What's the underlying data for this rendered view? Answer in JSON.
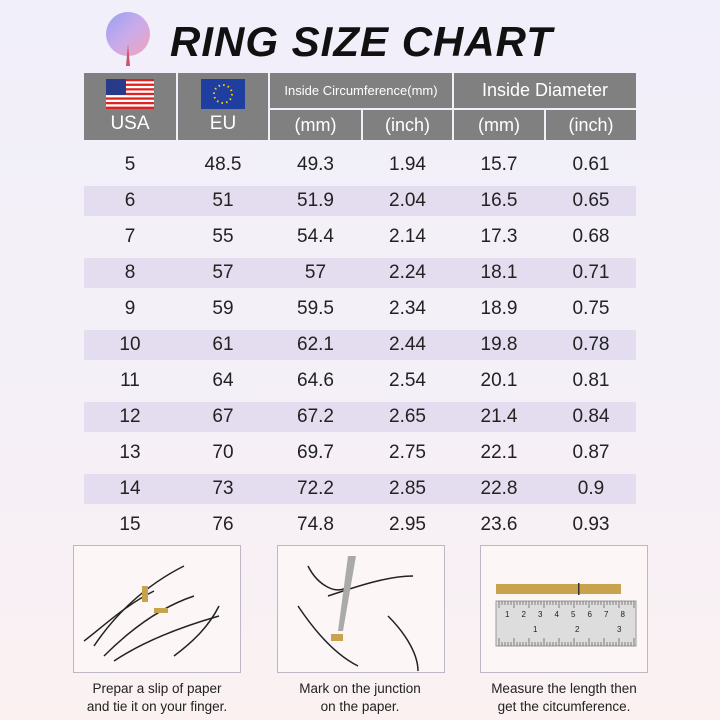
{
  "title": "RING SIZE CHART",
  "logo": "tree-logo",
  "header": {
    "usa": "USA",
    "eu": "EU",
    "circumference": "Inside Circumference(mm)",
    "diameter": "Inside Diameter",
    "circ_mm": "(mm)",
    "circ_inch": "(inch)",
    "diam_mm": "(mm)",
    "diam_inch": "(inch)"
  },
  "rows": [
    [
      "5",
      "48.5",
      "49.3",
      "1.94",
      "15.7",
      "0.61"
    ],
    [
      "6",
      "51",
      "51.9",
      "2.04",
      "16.5",
      "0.65"
    ],
    [
      "7",
      "55",
      "54.4",
      "2.14",
      "17.3",
      "0.68"
    ],
    [
      "8",
      "57",
      "57",
      "2.24",
      "18.1",
      "0.71"
    ],
    [
      "9",
      "59",
      "59.5",
      "2.34",
      "18.9",
      "0.75"
    ],
    [
      "10",
      "61",
      "62.1",
      "2.44",
      "19.8",
      "0.78"
    ],
    [
      "11",
      "64",
      "64.6",
      "2.54",
      "20.1",
      "0.81"
    ],
    [
      "12",
      "67",
      "67.2",
      "2.65",
      "21.4",
      "0.84"
    ],
    [
      "13",
      "70",
      "69.7",
      "2.75",
      "22.1",
      "0.87"
    ],
    [
      "14",
      "73",
      "72.2",
      "2.85",
      "22.8",
      "0.9"
    ],
    [
      "15",
      "76",
      "74.8",
      "2.95",
      "23.6",
      "0.93"
    ]
  ],
  "steps": [
    {
      "line1": "Prepar a slip of paper",
      "line2": "and tie it on your finger."
    },
    {
      "line1": "Mark on the junction",
      "line2": "on the paper."
    },
    {
      "line1": "Measure  the length then",
      "line2": "get the citcumference."
    }
  ],
  "ruler": {
    "top_ticks": [
      "1",
      "2",
      "3",
      "4",
      "5",
      "6",
      "7",
      "8"
    ],
    "bottom_ticks": [
      "1",
      "2",
      "3"
    ]
  },
  "colors": {
    "header_bg": "#808080",
    "stripe": "#e4ddf0",
    "paper": "#c9a24e"
  }
}
